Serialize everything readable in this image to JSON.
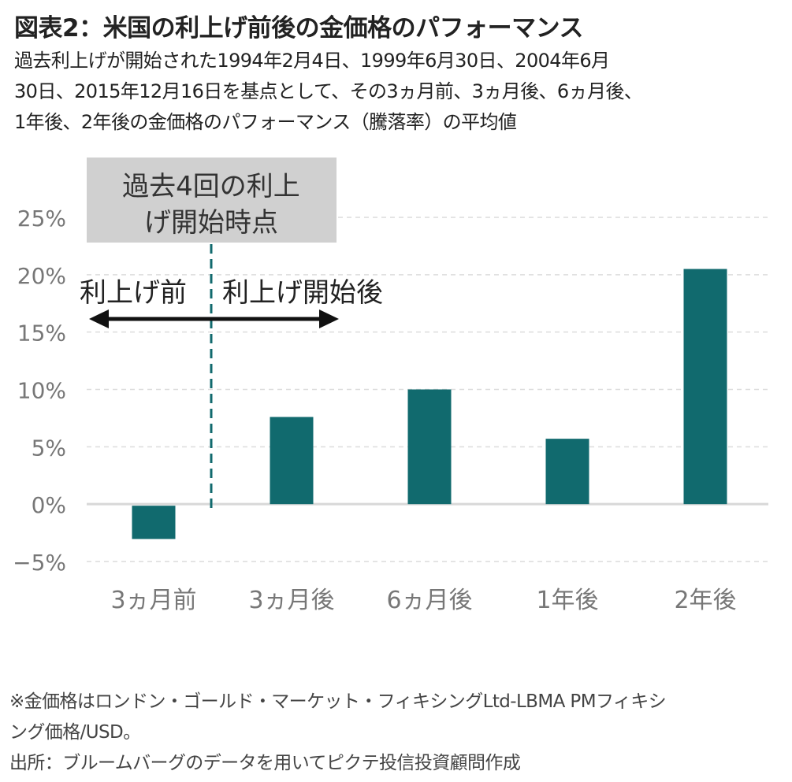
{
  "title": "図表2：米国の利上げ前後の金価格のパフォーマンス",
  "subtitle_lines": [
    "過去利上げが開始された1994年2月4日、1999年6月30日、2004年6月",
    "30日、2015年12月16日を基点として、その3ヵ月前、3ヵ月後、6ヵ月後、",
    "1年後、2年後の金価格のパフォーマンス（騰落率）の平均値"
  ],
  "notes": [
    "※金価格はロンドン・ゴールド・マーケット・フィキシングLtd-LBMA PMフィキシ",
    "ング価格/USD。",
    "出所：ブルームバーグのデータを用いてピクテ投信投資顧問作成"
  ],
  "chart_data": {
    "type": "bar",
    "categories": [
      "3ヵ月前",
      "3ヵ月後",
      "6ヵ月後",
      "1年後",
      "2年後"
    ],
    "values": [
      -2.9,
      7.6,
      10.0,
      5.7,
      20.5
    ],
    "unit": "%",
    "ylim": [
      -5,
      25
    ],
    "yticks": [
      -5,
      0,
      5,
      10,
      15,
      20,
      25
    ],
    "ytick_labels": [
      "−5%",
      "0%",
      "5%",
      "10%",
      "15%",
      "20%",
      "25%"
    ],
    "grid": true,
    "bar_color": "#116a6e",
    "annotations": {
      "box_lines": [
        "過去4回の利上",
        "げ開始時点"
      ],
      "before_label": "利上げ前",
      "after_label": "利上げ開始後"
    }
  }
}
